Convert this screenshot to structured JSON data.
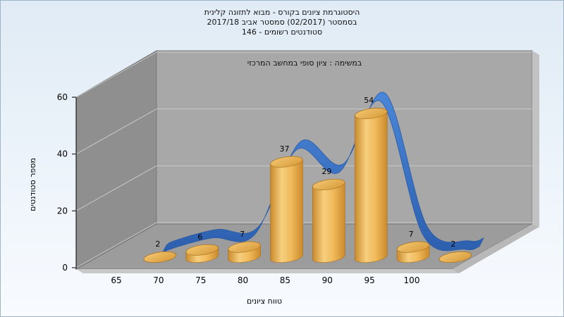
{
  "title_lines": [
    "היסטוגרמת ציונים בקורס - מבוא לתזונה קלינית",
    "בסמסטר (02/2017) סמסטר אביב 2017/18",
    "סטודנטים רשומים - 146"
  ],
  "annotation": "במשימה : ציון סופי במחשב המרכזי",
  "colors": {
    "background_top": "#e0ebf5",
    "background_bottom": "#f8fbff",
    "wall_back": "#a8a8a8",
    "wall_side": "#8f8f8f",
    "floor": "#9c9c9c",
    "bar_light": "#f6cf7e",
    "bar_dark": "#c98a2c",
    "ribbon": "#3a74c8"
  },
  "chart_data": {
    "type": "bar",
    "title": "היסטוגרמת ציונים בקורס - מבוא לתזונה קלינית",
    "xlabel": "טווח ציונים",
    "ylabel": "מספר סטודנטים",
    "x_ticks": [
      "65",
      "70",
      "75",
      "80",
      "85",
      "90",
      "95",
      "100"
    ],
    "y_ticks": [
      "0",
      "20",
      "40",
      "60"
    ],
    "ylim": [
      0,
      60
    ],
    "bars": [
      {
        "x": 67.5,
        "value": 2,
        "label": "2"
      },
      {
        "x": 72.5,
        "value": 6,
        "label": "6"
      },
      {
        "x": 77.5,
        "value": 7,
        "label": "7"
      },
      {
        "x": 82.5,
        "value": 37,
        "label": "37"
      },
      {
        "x": 87.5,
        "value": 29,
        "label": "29"
      },
      {
        "x": 92.5,
        "value": 54,
        "label": "54"
      },
      {
        "x": 97.5,
        "value": 7,
        "label": "7"
      },
      {
        "x": 102.5,
        "value": 2,
        "label": "2"
      }
    ],
    "grid": true,
    "ribbon": "3d-smooth-curve"
  }
}
